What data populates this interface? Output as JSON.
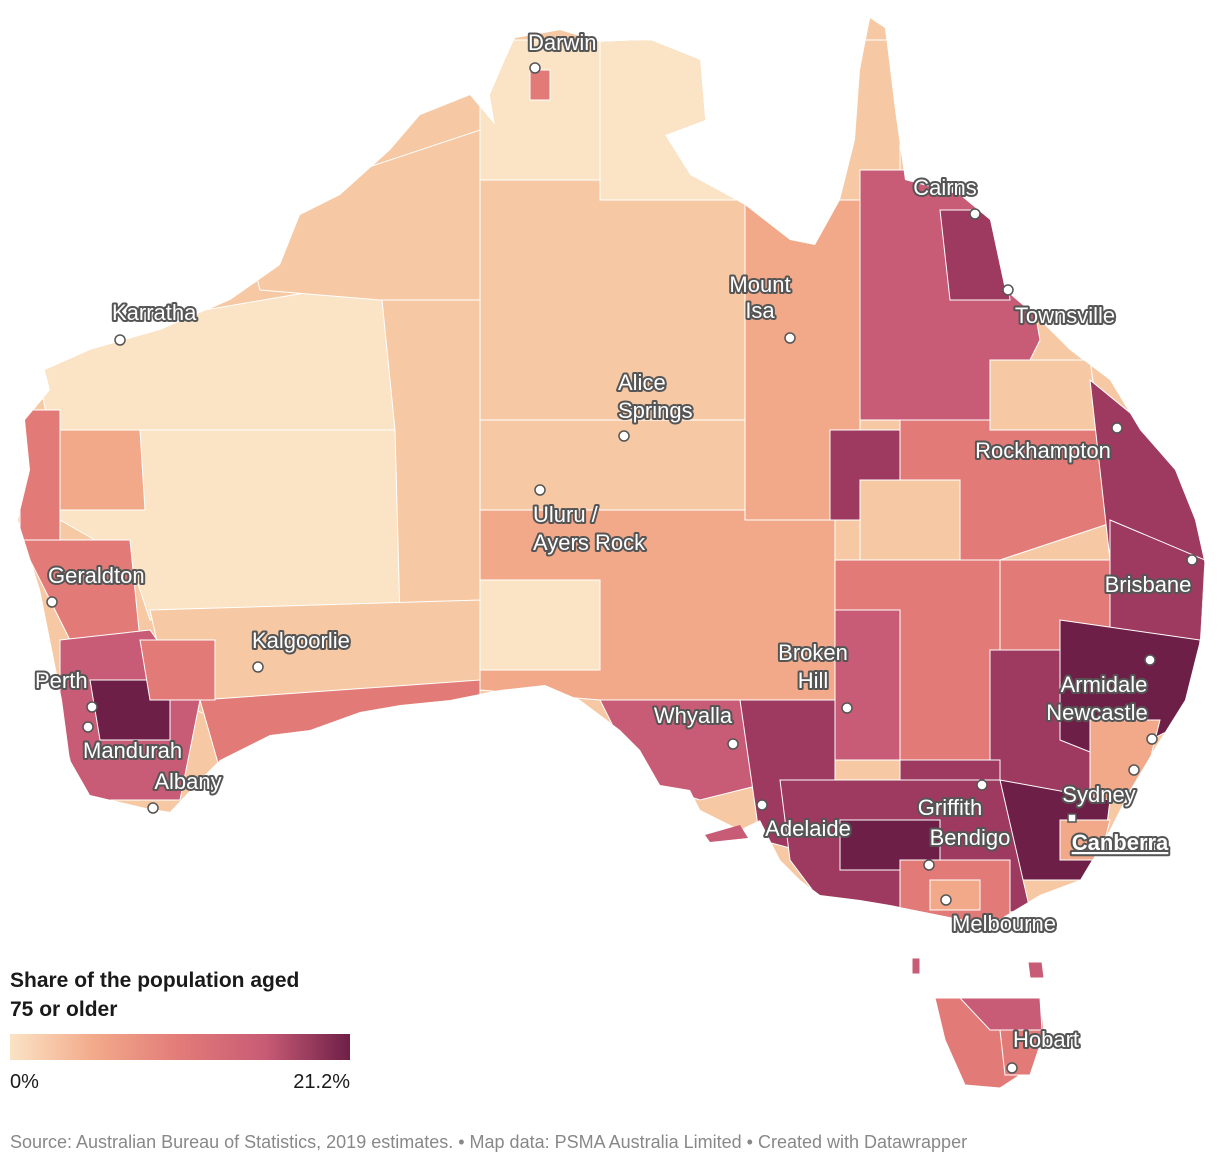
{
  "map": {
    "colors": [
      "#fbe3c5",
      "#f6c9a4",
      "#f2a98a",
      "#e27b78",
      "#c85b75",
      "#9e3a60",
      "#6e1f47"
    ],
    "land_stroke": "#ffffff",
    "cities": [
      {
        "name": "Darwin",
        "lines": [
          "Darwin"
        ]
      },
      {
        "name": "Cairns",
        "lines": [
          "Cairns"
        ]
      },
      {
        "name": "Townsville",
        "lines": [
          "Townsville"
        ]
      },
      {
        "name": "Mount Isa",
        "lines": [
          "Mount",
          "Isa"
        ]
      },
      {
        "name": "Karratha",
        "lines": [
          "Karratha"
        ]
      },
      {
        "name": "Alice Springs",
        "lines": [
          "Alice",
          "Springs"
        ]
      },
      {
        "name": "Rockhampton",
        "lines": [
          "Rockhampton"
        ]
      },
      {
        "name": "Uluru / Ayers Rock",
        "lines": [
          "Uluru /",
          "Ayers Rock"
        ]
      },
      {
        "name": "Brisbane",
        "lines": [
          "Brisbane"
        ]
      },
      {
        "name": "Geraldton",
        "lines": [
          "Geraldton"
        ]
      },
      {
        "name": "Kalgoorlie",
        "lines": [
          "Kalgoorlie"
        ]
      },
      {
        "name": "Broken Hill",
        "lines": [
          "Broken",
          "Hill"
        ]
      },
      {
        "name": "Armidale",
        "lines": [
          "Armidale"
        ]
      },
      {
        "name": "Perth",
        "lines": [
          "Perth"
        ]
      },
      {
        "name": "Newcastle",
        "lines": [
          "Newcastle"
        ]
      },
      {
        "name": "Whyalla",
        "lines": [
          "Whyalla"
        ]
      },
      {
        "name": "Mandurah",
        "lines": [
          "Mandurah"
        ]
      },
      {
        "name": "Albany",
        "lines": [
          "Albany"
        ]
      },
      {
        "name": "Sydney",
        "lines": [
          "Sydney"
        ]
      },
      {
        "name": "Griffith",
        "lines": [
          "Griffith"
        ]
      },
      {
        "name": "Adelaide",
        "lines": [
          "Adelaide"
        ]
      },
      {
        "name": "Canberra",
        "lines": [
          "Canberra"
        ],
        "capital": true
      },
      {
        "name": "Bendigo",
        "lines": [
          "Bendigo"
        ]
      },
      {
        "name": "Melbourne",
        "lines": [
          "Melbourne"
        ]
      },
      {
        "name": "Hobart",
        "lines": [
          "Hobart"
        ]
      }
    ]
  },
  "legend": {
    "title_line1": "Share of the population aged",
    "title_line2": "75 or older",
    "min_label": "0%",
    "max_label": "21.2%",
    "gradient_start": "#fbe3c5",
    "gradient_end": "#6e1f47"
  },
  "footer": {
    "text": "Source: Australian Bureau of Statistics, 2019 estimates. • Map data: PSMA Australia Limited • Created with Datawrapper"
  }
}
